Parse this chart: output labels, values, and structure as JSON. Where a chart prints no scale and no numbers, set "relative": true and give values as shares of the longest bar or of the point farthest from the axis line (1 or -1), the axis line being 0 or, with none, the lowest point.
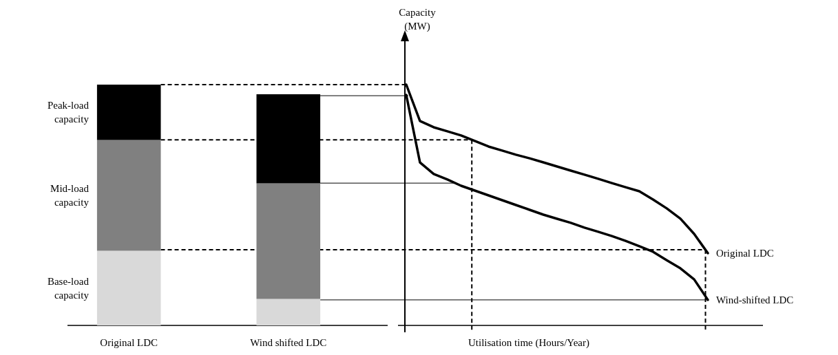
{
  "chart_data": [
    {
      "type": "bar",
      "stacked": true,
      "relative": true,
      "categories": [
        "Original LDC",
        "Wind shifted LDC"
      ],
      "series": [
        {
          "name": "Base-load capacity",
          "color": "#d9d9d9",
          "values": [
            0.31,
            0.11
          ]
        },
        {
          "name": "Mid-load capacity",
          "color": "#808080",
          "values": [
            0.46,
            0.48
          ]
        },
        {
          "name": "Peak-load capacity",
          "color": "#000000",
          "values": [
            0.23,
            0.37
          ]
        }
      ],
      "ref_lines": [
        {
          "axis": "y",
          "value": 1.0,
          "line_style": "dashed"
        },
        {
          "axis": "y",
          "value": 0.771,
          "line_style": "dashed"
        },
        {
          "axis": "y",
          "value": 0.314,
          "line_style": "dashed"
        },
        {
          "axis": "y",
          "value": 0.954,
          "line_style": "solid"
        },
        {
          "axis": "y",
          "value": 0.591,
          "line_style": "solid"
        },
        {
          "axis": "y",
          "value": 0.106,
          "line_style": "solid"
        }
      ]
    },
    {
      "type": "line",
      "relative": true,
      "xlabel": "Utilisation time (Hours/Year)",
      "ylabel": "Capacity (MW)",
      "categories": [
        null,
        null,
        null,
        null,
        null,
        null,
        null,
        null,
        null,
        null,
        null,
        null,
        null,
        null,
        null,
        null,
        null,
        null,
        null,
        null,
        null,
        null,
        null
      ],
      "series": [
        {
          "name": "Original LDC",
          "color": "#000000",
          "values": [
            1.0,
            0.849,
            0.823,
            0.806,
            0.789,
            0.766,
            0.743,
            0.726,
            0.709,
            0.694,
            0.677,
            0.66,
            0.643,
            0.626,
            0.609,
            0.591,
            0.574,
            0.557,
            0.523,
            0.486,
            0.443,
            0.38,
            0.3
          ]
        },
        {
          "name": "Wind-shifted LDC",
          "color": "#000000",
          "values": [
            0.957,
            0.677,
            0.629,
            0.606,
            0.58,
            0.56,
            0.54,
            0.52,
            0.5,
            0.48,
            0.46,
            0.443,
            0.426,
            0.406,
            0.389,
            0.371,
            0.351,
            0.329,
            0.306,
            0.271,
            0.237,
            0.191,
            0.106
          ]
        }
      ]
    }
  ]
}
